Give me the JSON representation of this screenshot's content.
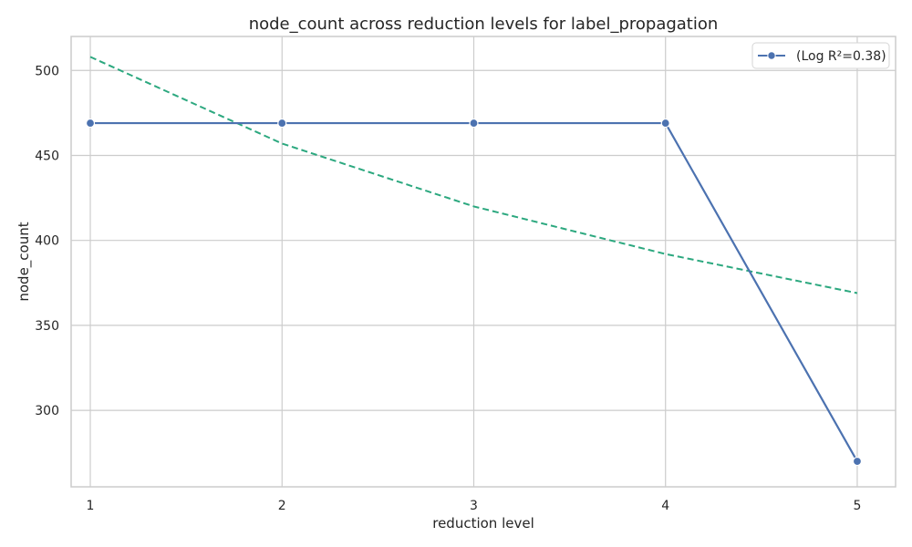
{
  "chart_data": {
    "type": "line",
    "title": "node_count across reduction levels for label_propagation",
    "xlabel": "reduction level",
    "ylabel": "node_count",
    "x": [
      1,
      2,
      3,
      4,
      5
    ],
    "xticks": [
      "1",
      "2",
      "3",
      "4",
      "5"
    ],
    "yticks": [
      "300",
      "350",
      "400",
      "450",
      "500"
    ],
    "xlim": [
      0.9,
      5.2
    ],
    "ylim": [
      255,
      520
    ],
    "grid": true,
    "legend_position": "top-right",
    "series": [
      {
        "name": "(Log R²=0.38)",
        "values": [
          469,
          469,
          469,
          469,
          270
        ],
        "color": "#4c72b0",
        "marker": "circle",
        "line_style": "solid"
      },
      {
        "values": [
          508,
          457,
          420,
          392,
          369
        ],
        "color": "#2ca87f",
        "line_style": "dashed"
      }
    ]
  }
}
